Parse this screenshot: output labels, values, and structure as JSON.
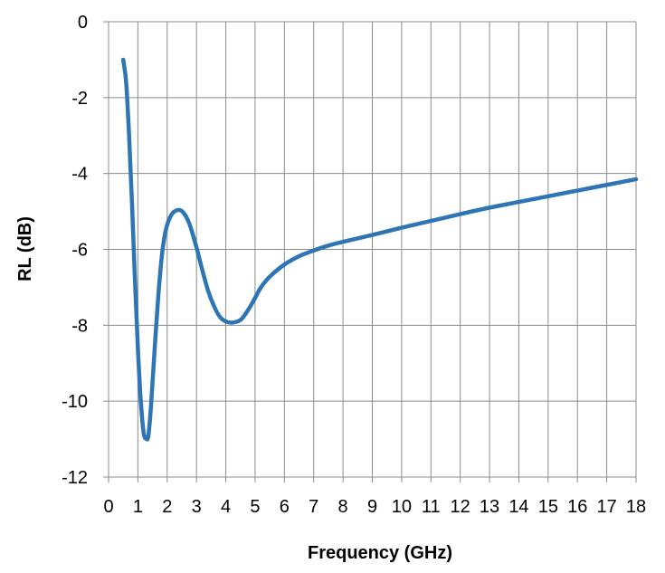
{
  "chart_data": {
    "type": "line",
    "title": "",
    "xlabel": "Frequency (GHz)",
    "ylabel": "RL (dB)",
    "xlim": [
      0,
      18
    ],
    "ylim": [
      -12,
      0
    ],
    "xticks": [
      0,
      1,
      2,
      3,
      4,
      5,
      6,
      7,
      8,
      9,
      10,
      11,
      12,
      13,
      14,
      15,
      16,
      17,
      18
    ],
    "xtick_labels": [
      "0",
      "1",
      "2",
      "3",
      "4",
      "5",
      "6",
      "7",
      "8",
      "9",
      "10",
      "11",
      "12",
      "13",
      "14",
      "15",
      "16",
      "17",
      "18"
    ],
    "yticks": [
      0,
      -2,
      -4,
      -6,
      -8,
      -10,
      -12
    ],
    "ytick_labels": [
      "0",
      "-2",
      "-4",
      "-6",
      "-8",
      "-10",
      "-12"
    ],
    "grid": true,
    "colors": {
      "line": "#2e75b6",
      "grid": "#8c8c8c"
    },
    "series": [
      {
        "x": [
          0.5,
          0.6,
          0.7,
          0.8,
          0.9,
          1.0,
          1.1,
          1.2,
          1.3,
          1.35,
          1.4,
          1.45,
          1.5,
          1.6,
          1.7,
          1.8,
          1.9,
          2.0,
          2.1,
          2.2,
          2.3,
          2.4,
          2.5,
          2.6,
          2.7,
          2.8,
          3.0,
          3.2,
          3.4,
          3.6,
          3.8,
          4.0,
          4.2,
          4.4,
          4.5,
          4.6,
          4.8,
          5.0,
          5.2,
          5.5,
          6.0,
          6.5,
          7.0,
          7.5,
          8.0,
          9.0,
          10.0,
          11.0,
          12.0,
          13.0,
          14.0,
          15.0,
          16.0,
          17.0,
          18.0
        ],
        "values": [
          -1.0,
          -1.6,
          -3.0,
          -4.8,
          -6.8,
          -8.6,
          -10.0,
          -10.85,
          -11.0,
          -10.95,
          -10.6,
          -10.1,
          -9.5,
          -8.3,
          -7.2,
          -6.3,
          -5.7,
          -5.35,
          -5.15,
          -5.03,
          -4.98,
          -4.96,
          -4.99,
          -5.08,
          -5.22,
          -5.42,
          -5.95,
          -6.55,
          -7.1,
          -7.5,
          -7.78,
          -7.9,
          -7.93,
          -7.9,
          -7.86,
          -7.78,
          -7.55,
          -7.28,
          -7.0,
          -6.72,
          -6.4,
          -6.18,
          -6.03,
          -5.9,
          -5.8,
          -5.62,
          -5.43,
          -5.25,
          -5.07,
          -4.9,
          -4.75,
          -4.6,
          -4.45,
          -4.3,
          -4.15
        ]
      }
    ]
  }
}
